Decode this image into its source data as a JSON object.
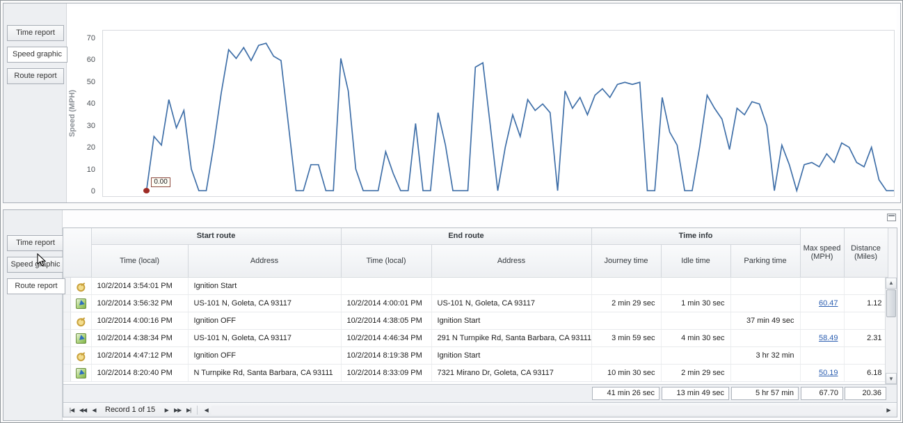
{
  "panels": {
    "top": {
      "active_tab": "Speed graphic",
      "tabs": [
        {
          "label": "Time report"
        },
        {
          "label": "Speed graphic"
        },
        {
          "label": "Route report"
        }
      ]
    },
    "bottom": {
      "active_tab": "Route report",
      "tabs": [
        {
          "label": "Time report"
        },
        {
          "label": "Speed graphic"
        },
        {
          "label": "Route report"
        }
      ]
    }
  },
  "chart_data": {
    "type": "line",
    "title": "",
    "xlabel": "",
    "ylabel": "Speed (MPH)",
    "ylim": [
      0,
      70
    ],
    "yticks": [
      0,
      10,
      20,
      30,
      40,
      50,
      60,
      70
    ],
    "grid": false,
    "legend": "none",
    "line_color": "#3f6fa8",
    "marker": {
      "index": 0,
      "color": "#9e2b25",
      "annotation": "0.00"
    },
    "values": [
      0,
      25,
      21,
      42,
      29,
      37,
      10,
      0,
      0,
      21,
      45,
      65,
      61,
      66,
      60,
      67,
      68,
      62,
      60,
      30,
      0,
      0,
      12,
      12,
      0,
      0,
      61,
      46,
      10,
      0,
      0,
      0,
      18,
      8,
      0,
      0,
      31,
      0,
      0,
      36,
      21,
      0,
      0,
      0,
      57,
      59,
      30,
      0,
      20,
      35,
      25,
      42,
      37,
      40,
      36,
      0,
      46,
      38,
      43,
      35,
      44,
      47,
      43,
      49,
      50,
      49,
      50,
      0,
      0,
      43,
      27,
      21,
      0,
      0,
      20,
      44,
      38,
      33,
      19,
      38,
      35,
      41,
      40,
      30,
      0,
      21,
      12,
      0,
      12,
      13,
      11,
      17,
      13,
      22,
      20,
      13,
      11,
      20,
      5,
      0,
      0
    ]
  },
  "table": {
    "groups": {
      "start": "Start route",
      "end": "End route",
      "time": "Time info"
    },
    "columns": {
      "start_time": "Time (local)",
      "start_address": "Address",
      "end_time": "Time (local)",
      "end_address": "Address",
      "journey": "Journey time",
      "idle": "Idle time",
      "parking": "Parking time",
      "max_speed": "Max speed (MPH)",
      "distance": "Distance (Miles)"
    },
    "rows": [
      {
        "icon": "key",
        "start_time": "10/2/2014 3:54:01 PM",
        "start_address": "Ignition Start",
        "end_time": "",
        "end_address": "",
        "journey": "",
        "idle": "",
        "parking": "",
        "max_speed": "",
        "distance": ""
      },
      {
        "icon": "route",
        "start_time": "10/2/2014 3:56:32 PM",
        "start_address": "US-101 N, Goleta, CA 93117",
        "end_time": "10/2/2014 4:00:01 PM",
        "end_address": "US-101 N, Goleta, CA 93117",
        "journey": "2 min 29 sec",
        "idle": "1 min 30 sec",
        "parking": "",
        "max_speed": "60.47",
        "distance": "1.12"
      },
      {
        "icon": "key",
        "start_time": "10/2/2014 4:00:16 PM",
        "start_address": "Ignition OFF",
        "end_time": "10/2/2014 4:38:05 PM",
        "end_address": "Ignition Start",
        "journey": "",
        "idle": "",
        "parking": "37 min 49 sec",
        "max_speed": "",
        "distance": ""
      },
      {
        "icon": "route",
        "start_time": "10/2/2014 4:38:34 PM",
        "start_address": "US-101 N, Goleta, CA 93117",
        "end_time": "10/2/2014 4:46:34 PM",
        "end_address": "291 N Turnpike Rd, Santa Barbara, CA 93111",
        "journey": "3 min 59 sec",
        "idle": "4 min 30 sec",
        "parking": "",
        "max_speed": "58.49",
        "distance": "2.31"
      },
      {
        "icon": "key",
        "start_time": "10/2/2014 4:47:12 PM",
        "start_address": "Ignition OFF",
        "end_time": "10/2/2014 8:19:38 PM",
        "end_address": "Ignition Start",
        "journey": "",
        "idle": "",
        "parking": "3 hr 32 min",
        "max_speed": "",
        "distance": ""
      },
      {
        "icon": "route",
        "start_time": "10/2/2014 8:20:40 PM",
        "start_address": "N Turnpike Rd, Santa Barbara, CA 93111",
        "end_time": "10/2/2014 8:33:09 PM",
        "end_address": "7321 Mirano Dr, Goleta, CA 93117",
        "journey": "10 min 30 sec",
        "idle": "2 min 29 sec",
        "parking": "",
        "max_speed": "50.19",
        "distance": "6.18"
      }
    ],
    "summary": {
      "journey": "41 min 26 sec",
      "idle": "13 min 49 sec",
      "parking": "5 hr 57 min",
      "max_speed": "67.70",
      "distance": "20.36"
    },
    "pager": {
      "text": "Record 1 of 15"
    }
  },
  "icons": {
    "first": "|◀",
    "prev_page": "◀◀",
    "prev": "◀",
    "next": "▶",
    "next_page": "▶▶",
    "last": "▶|",
    "up": "▲",
    "down": "▼",
    "left": "◀",
    "right": "▶"
  }
}
